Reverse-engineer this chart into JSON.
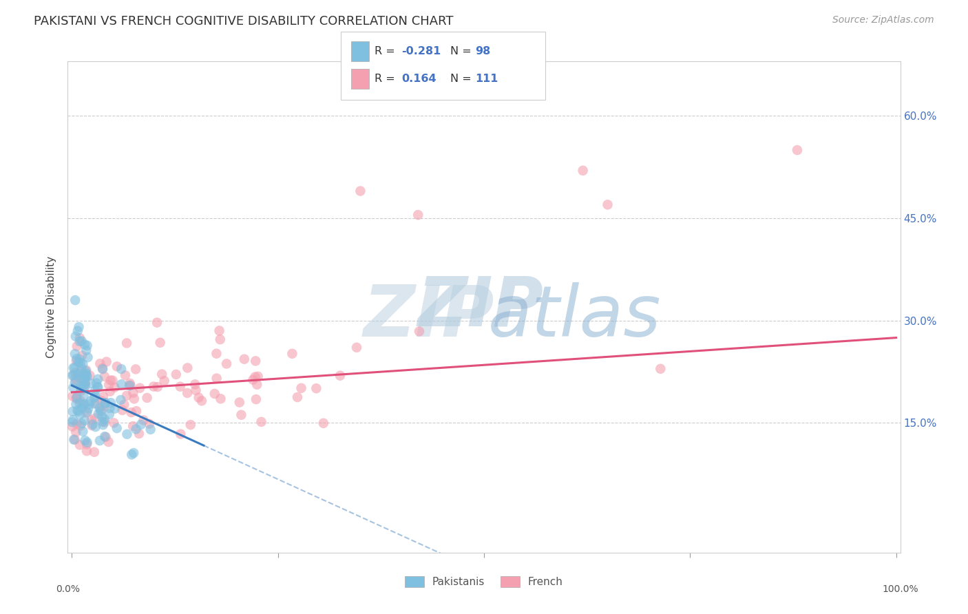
{
  "title": "PAKISTANI VS FRENCH COGNITIVE DISABILITY CORRELATION CHART",
  "source": "Source: ZipAtlas.com",
  "ylabel": "Cognitive Disability",
  "ylim": [
    -0.04,
    0.68
  ],
  "xlim": [
    -0.005,
    1.005
  ],
  "ytick_vals": [
    0.15,
    0.3,
    0.45,
    0.6
  ],
  "ytick_labels": [
    "15.0%",
    "30.0%",
    "45.0%",
    "60.0%"
  ],
  "pak_color": "#7fbfdf",
  "fr_color": "#f4a0b0",
  "pak_line_color": "#3a7bbf",
  "fr_line_color": "#e0507a",
  "pak_line_solid_end": 0.16,
  "pak_line_dash_end": 0.52,
  "fr_line_start": 0.0,
  "fr_line_end": 1.0,
  "background_color": "#ffffff",
  "grid_color": "#cccccc",
  "legend_R_pak": "-0.281",
  "legend_N_pak": "98",
  "legend_R_fr": "0.164",
  "legend_N_fr": "111",
  "pak_intercept": 0.205,
  "pak_slope": -0.55,
  "fr_intercept": 0.195,
  "fr_slope": 0.08
}
